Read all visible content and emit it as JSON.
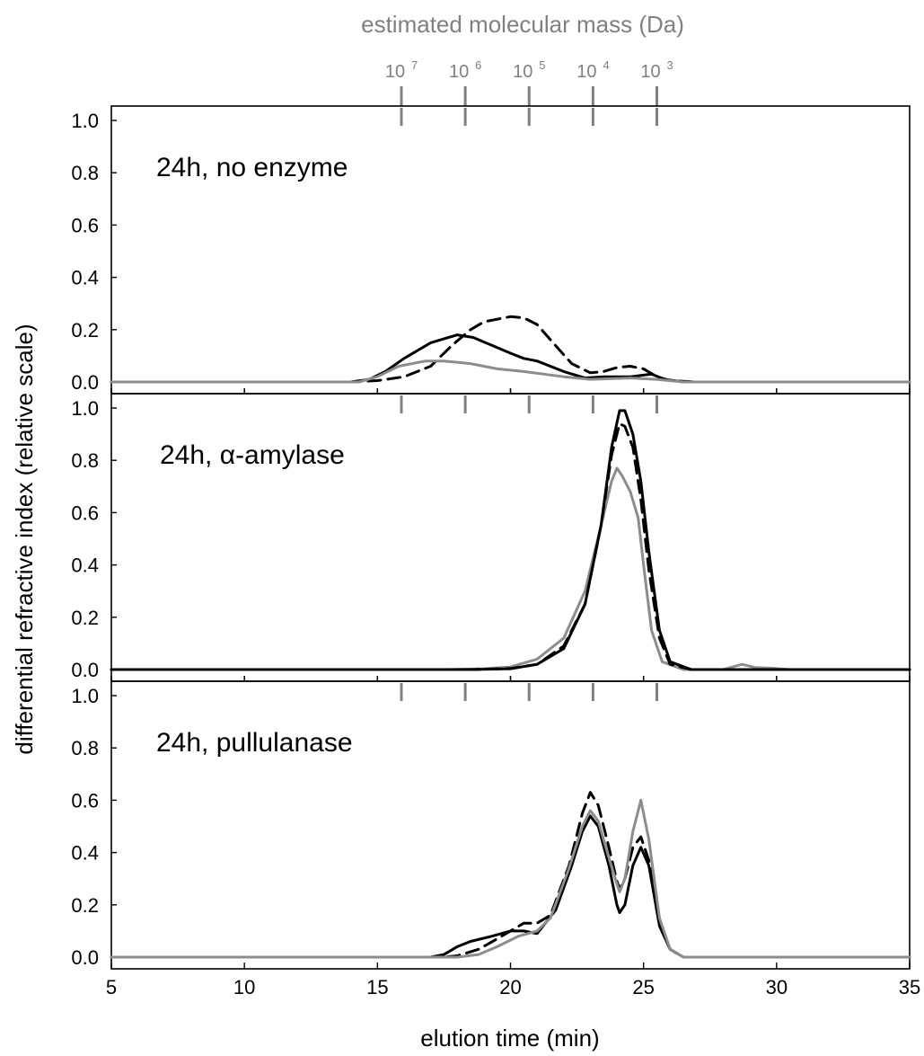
{
  "chart_data": {
    "type": "line",
    "top_axis": {
      "title": "estimated molecular mass (Da)",
      "ticks": [
        {
          "base": "10",
          "exp": "7",
          "x": 15.9
        },
        {
          "base": "10",
          "exp": "6",
          "x": 18.3
        },
        {
          "base": "10",
          "exp": "5",
          "x": 20.7
        },
        {
          "base": "10",
          "exp": "4",
          "x": 23.1
        },
        {
          "base": "10",
          "exp": "3",
          "x": 25.5
        }
      ]
    },
    "xlabel": "elution time (min)",
    "ylabel": "differential refractive index (relative scale)",
    "xlim": [
      5,
      35
    ],
    "ylim": [
      0,
      1.0
    ],
    "xticks": [
      "5",
      "10",
      "15",
      "20",
      "25",
      "30",
      "35"
    ],
    "yticks": [
      "0.0",
      "0.2",
      "0.4",
      "0.6",
      "0.8",
      "1.0"
    ],
    "colors": {
      "gray": "#8c8c8c",
      "black": "#000000",
      "mass_tick": "#808080"
    },
    "panels": [
      {
        "label": "24h, no enzyme",
        "series": [
          {
            "style": "dashed",
            "color": "#000000",
            "points": [
              [
                5,
                0
              ],
              [
                14,
                0
              ],
              [
                15,
                0.005
              ],
              [
                16,
                0.02
              ],
              [
                17,
                0.06
              ],
              [
                17.8,
                0.14
              ],
              [
                18.5,
                0.2
              ],
              [
                19,
                0.23
              ],
              [
                20,
                0.25
              ],
              [
                20.5,
                0.245
              ],
              [
                21,
                0.22
              ],
              [
                21.6,
                0.15
              ],
              [
                22.3,
                0.07
              ],
              [
                23,
                0.035
              ],
              [
                23.5,
                0.04
              ],
              [
                24,
                0.055
              ],
              [
                24.5,
                0.06
              ],
              [
                25,
                0.05
              ],
              [
                25.5,
                0.02
              ],
              [
                26,
                0.005
              ],
              [
                27,
                0
              ],
              [
                35,
                0
              ]
            ]
          },
          {
            "style": "solid",
            "color": "#000000",
            "points": [
              [
                5,
                0
              ],
              [
                14,
                0
              ],
              [
                14.7,
                0.01
              ],
              [
                15.3,
                0.04
              ],
              [
                16,
                0.09
              ],
              [
                17,
                0.15
              ],
              [
                18,
                0.18
              ],
              [
                18.6,
                0.17
              ],
              [
                19.3,
                0.14
              ],
              [
                20,
                0.11
              ],
              [
                20.5,
                0.09
              ],
              [
                21,
                0.08
              ],
              [
                22,
                0.04
              ],
              [
                22.8,
                0.015
              ],
              [
                23.5,
                0.02
              ],
              [
                24.5,
                0.02
              ],
              [
                25.3,
                0.03
              ],
              [
                25.8,
                0.01
              ],
              [
                26.5,
                0
              ],
              [
                35,
                0
              ]
            ]
          },
          {
            "style": "solid",
            "color": "#8c8c8c",
            "points": [
              [
                5,
                0
              ],
              [
                14.3,
                0
              ],
              [
                15,
                0.02
              ],
              [
                15.8,
                0.06
              ],
              [
                16.8,
                0.08
              ],
              [
                17.5,
                0.08
              ],
              [
                18.5,
                0.07
              ],
              [
                19.5,
                0.05
              ],
              [
                20.5,
                0.04
              ],
              [
                22,
                0.02
              ],
              [
                23,
                0.01
              ],
              [
                24.5,
                0.015
              ],
              [
                25.5,
                0.01
              ],
              [
                26.5,
                0
              ],
              [
                35,
                0
              ]
            ]
          }
        ]
      },
      {
        "label": "24h, α-amylase",
        "series": [
          {
            "style": "solid",
            "color": "#8c8c8c",
            "points": [
              [
                5,
                0
              ],
              [
                17.5,
                0
              ],
              [
                19,
                0.003
              ],
              [
                20,
                0.01
              ],
              [
                21,
                0.04
              ],
              [
                22,
                0.12
              ],
              [
                22.8,
                0.3
              ],
              [
                23.4,
                0.55
              ],
              [
                23.8,
                0.72
              ],
              [
                24,
                0.77
              ],
              [
                24.2,
                0.74
              ],
              [
                24.5,
                0.68
              ],
              [
                24.8,
                0.58
              ],
              [
                25,
                0.4
              ],
              [
                25.3,
                0.15
              ],
              [
                25.7,
                0.03
              ],
              [
                26.5,
                0
              ],
              [
                28,
                0
              ],
              [
                28.7,
                0.02
              ],
              [
                29.2,
                0.008
              ],
              [
                29.8,
                0.005
              ],
              [
                30.5,
                0
              ],
              [
                35,
                0
              ]
            ]
          },
          {
            "style": "dashed",
            "color": "#000000",
            "points": [
              [
                5,
                0
              ],
              [
                18.5,
                0
              ],
              [
                20,
                0.004
              ],
              [
                21,
                0.02
              ],
              [
                22,
                0.09
              ],
              [
                22.8,
                0.25
              ],
              [
                23.4,
                0.55
              ],
              [
                23.8,
                0.82
              ],
              [
                24.1,
                0.94
              ],
              [
                24.3,
                0.93
              ],
              [
                24.6,
                0.85
              ],
              [
                24.9,
                0.65
              ],
              [
                25.2,
                0.38
              ],
              [
                25.6,
                0.12
              ],
              [
                26,
                0.02
              ],
              [
                26.8,
                0
              ],
              [
                35,
                0
              ]
            ]
          },
          {
            "style": "solid",
            "color": "#000000",
            "points": [
              [
                5,
                0
              ],
              [
                18.5,
                0
              ],
              [
                20,
                0.003
              ],
              [
                21,
                0.02
              ],
              [
                22,
                0.08
              ],
              [
                22.8,
                0.25
              ],
              [
                23.4,
                0.55
              ],
              [
                23.8,
                0.85
              ],
              [
                24.1,
                0.99
              ],
              [
                24.3,
                0.99
              ],
              [
                24.6,
                0.9
              ],
              [
                24.9,
                0.72
              ],
              [
                25.2,
                0.45
              ],
              [
                25.6,
                0.15
              ],
              [
                26,
                0.03
              ],
              [
                26.8,
                0
              ],
              [
                35,
                0
              ]
            ]
          }
        ]
      },
      {
        "label": "24h, pullulanase",
        "series": [
          {
            "style": "solid",
            "color": "#000000",
            "points": [
              [
                5,
                0
              ],
              [
                17,
                0
              ],
              [
                17.5,
                0.01
              ],
              [
                18,
                0.04
              ],
              [
                18.5,
                0.06
              ],
              [
                19.3,
                0.08
              ],
              [
                20,
                0.1
              ],
              [
                20.5,
                0.1
              ],
              [
                21,
                0.09
              ],
              [
                21.7,
                0.18
              ],
              [
                22.3,
                0.35
              ],
              [
                22.7,
                0.48
              ],
              [
                23,
                0.54
              ],
              [
                23.3,
                0.5
              ],
              [
                23.7,
                0.35
              ],
              [
                24,
                0.2
              ],
              [
                24.1,
                0.17
              ],
              [
                24.3,
                0.2
              ],
              [
                24.6,
                0.35
              ],
              [
                24.9,
                0.42
              ],
              [
                25.2,
                0.35
              ],
              [
                25.6,
                0.12
              ],
              [
                26,
                0.03
              ],
              [
                26.5,
                0
              ],
              [
                35,
                0
              ]
            ]
          },
          {
            "style": "dashed",
            "color": "#000000",
            "points": [
              [
                5,
                0
              ],
              [
                17.5,
                0
              ],
              [
                18,
                0.005
              ],
              [
                18.8,
                0.03
              ],
              [
                19.5,
                0.07
              ],
              [
                20,
                0.1
              ],
              [
                20.5,
                0.13
              ],
              [
                21,
                0.13
              ],
              [
                21.5,
                0.16
              ],
              [
                22.2,
                0.35
              ],
              [
                22.7,
                0.55
              ],
              [
                23,
                0.63
              ],
              [
                23.3,
                0.58
              ],
              [
                23.7,
                0.42
              ],
              [
                24,
                0.29
              ],
              [
                24.1,
                0.26
              ],
              [
                24.3,
                0.3
              ],
              [
                24.6,
                0.42
              ],
              [
                24.9,
                0.46
              ],
              [
                25.2,
                0.37
              ],
              [
                25.6,
                0.12
              ],
              [
                26,
                0.03
              ],
              [
                26.5,
                0
              ],
              [
                35,
                0
              ]
            ]
          },
          {
            "style": "solid",
            "color": "#8c8c8c",
            "points": [
              [
                5,
                0
              ],
              [
                18,
                0
              ],
              [
                18.8,
                0.01
              ],
              [
                19.5,
                0.04
              ],
              [
                20.3,
                0.08
              ],
              [
                21,
                0.1
              ],
              [
                21.5,
                0.15
              ],
              [
                22.2,
                0.34
              ],
              [
                22.7,
                0.5
              ],
              [
                23,
                0.56
              ],
              [
                23.3,
                0.52
              ],
              [
                23.7,
                0.38
              ],
              [
                24,
                0.28
              ],
              [
                24.1,
                0.25
              ],
              [
                24.3,
                0.3
              ],
              [
                24.6,
                0.48
              ],
              [
                24.9,
                0.6
              ],
              [
                25.2,
                0.45
              ],
              [
                25.6,
                0.15
              ],
              [
                26,
                0.03
              ],
              [
                26.5,
                0
              ],
              [
                35,
                0
              ]
            ]
          }
        ]
      }
    ]
  }
}
